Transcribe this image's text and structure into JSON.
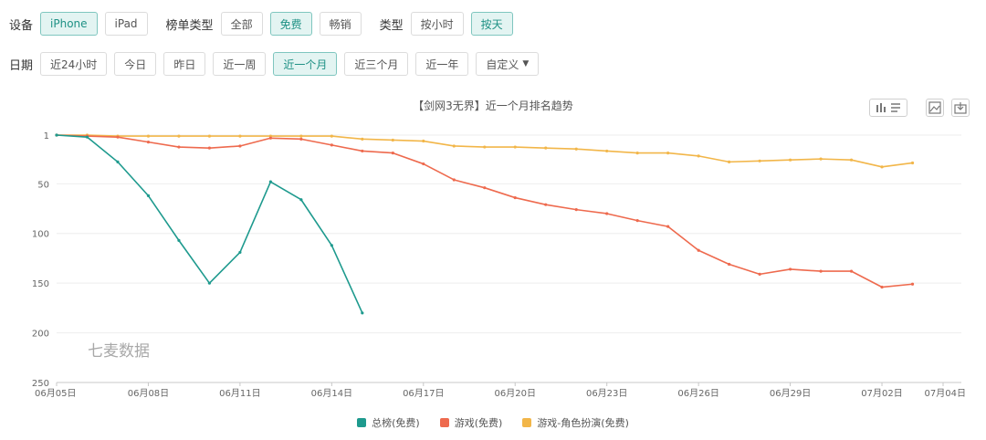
{
  "filters": {
    "device": {
      "label": "设备",
      "options": [
        "iPhone",
        "iPad"
      ],
      "active": 0
    },
    "list_type": {
      "label": "榜单类型",
      "options": [
        "全部",
        "免费",
        "畅销"
      ],
      "active": 1
    },
    "type": {
      "label": "类型",
      "options": [
        "按小时",
        "按天"
      ],
      "active": 1
    },
    "date": {
      "label": "日期",
      "options": [
        "近24小时",
        "今日",
        "昨日",
        "近一周",
        "近一个月",
        "近三个月",
        "近一年",
        "自定义"
      ],
      "active": 4
    }
  },
  "toolbar": {
    "icons": [
      "bar-line-toggle-icon",
      "image-download-icon",
      "export-icon"
    ]
  },
  "watermark": "七麦数据",
  "colors": {
    "teal": "#1e9a8e",
    "red": "#ee6a4e",
    "orange": "#f2b649",
    "active_bg": "#e3f4f2"
  },
  "chart_data": {
    "type": "line",
    "title": "【剑网3无界】近一个月排名趋势",
    "x": [
      "06月05日",
      "06月06日",
      "06月07日",
      "06月08日",
      "06月09日",
      "06月10日",
      "06月11日",
      "06月12日",
      "06月13日",
      "06月14日",
      "06月15日",
      "06月16日",
      "06月17日",
      "06月18日",
      "06月19日",
      "06月20日",
      "06月21日",
      "06月22日",
      "06月23日",
      "06月24日",
      "06月25日",
      "06月26日",
      "06月27日",
      "06月28日",
      "06月29日",
      "06月30日",
      "07月01日",
      "07月02日",
      "07月03日",
      "07月04日"
    ],
    "x_ticks": [
      "06月05日",
      "06月08日",
      "06月11日",
      "06月14日",
      "06月17日",
      "06月20日",
      "06月23日",
      "06月26日",
      "06月29日",
      "07月02日",
      "07月04日"
    ],
    "y_ticks": [
      1,
      50,
      100,
      150,
      200,
      250
    ],
    "y_inverted": true,
    "ylim": [
      1,
      250
    ],
    "series": [
      {
        "name": "总榜(免费)",
        "color": "#1e9a8e",
        "values": [
          1,
          3,
          28,
          62,
          107,
          150,
          119,
          48,
          66,
          112,
          180,
          null,
          null,
          null,
          null,
          null,
          null,
          null,
          null,
          null,
          null,
          null,
          null,
          null,
          null,
          null,
          null,
          null,
          null,
          null
        ]
      },
      {
        "name": "游戏(免费)",
        "color": "#ee6a4e",
        "values": [
          1,
          2,
          3,
          8,
          13,
          14,
          12,
          4,
          5,
          11,
          17,
          19,
          30,
          46,
          54,
          64,
          71,
          76,
          80,
          87,
          93,
          117,
          131,
          141,
          136,
          138,
          138,
          154,
          151,
          null
        ]
      },
      {
        "name": "游戏-角色扮演(免费)",
        "color": "#f2b649",
        "values": [
          1,
          1,
          2,
          2,
          2,
          2,
          2,
          2,
          2,
          2,
          5,
          6,
          7,
          12,
          13,
          13,
          14,
          15,
          17,
          19,
          19,
          22,
          28,
          27,
          26,
          25,
          26,
          33,
          29,
          null
        ]
      }
    ]
  }
}
